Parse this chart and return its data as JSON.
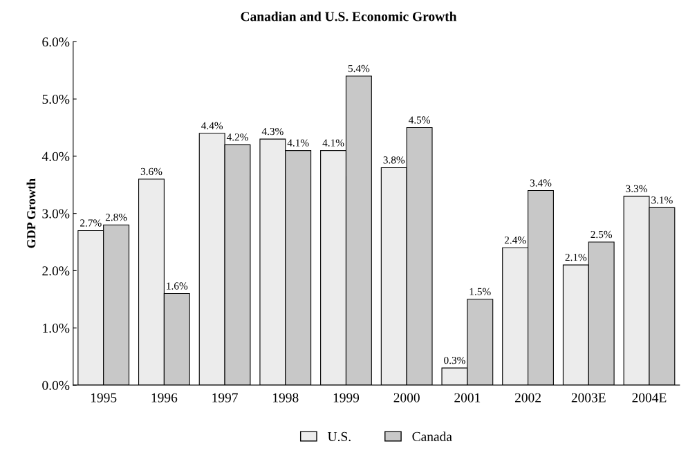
{
  "chart_data": {
    "type": "bar",
    "title": "Canadian and U.S. Economic Growth",
    "ylabel": "GDP Growth",
    "categories": [
      "1995",
      "1996",
      "1997",
      "1998",
      "1999",
      "2000",
      "2001",
      "2002",
      "2003E",
      "2004E"
    ],
    "series": [
      {
        "name": "U.S.",
        "color": "#ececec",
        "values": [
          2.7,
          3.6,
          4.4,
          4.3,
          4.1,
          3.8,
          0.3,
          2.4,
          2.1,
          3.3
        ],
        "value_labels": [
          "2.7%",
          "3.6%",
          "4.4%",
          "4.3%",
          "4.1%",
          "3.8%",
          "0.3%",
          "2.4%",
          "2.1%",
          "3.3%"
        ]
      },
      {
        "name": "Canada",
        "color": "#c8c8c8",
        "values": [
          2.8,
          1.6,
          4.2,
          4.1,
          5.4,
          4.5,
          1.5,
          3.4,
          2.5,
          3.1
        ],
        "value_labels": [
          "2.8%",
          "1.6%",
          "4.2%",
          "4.1%",
          "5.4%",
          "4.5%",
          "1.5%",
          "3.4%",
          "2.5%",
          "3.1%"
        ]
      }
    ],
    "ylim": [
      0,
      6
    ],
    "yticks": [
      {
        "value": 0,
        "label": "0.0%"
      },
      {
        "value": 1,
        "label": "1.0%"
      },
      {
        "value": 2,
        "label": "2.0%"
      },
      {
        "value": 3,
        "label": "3.0%"
      },
      {
        "value": 4,
        "label": "4.0%"
      },
      {
        "value": 5,
        "label": "5.0%"
      },
      {
        "value": 6,
        "label": "6.0%"
      }
    ],
    "grid": false,
    "legend": "bottom"
  }
}
